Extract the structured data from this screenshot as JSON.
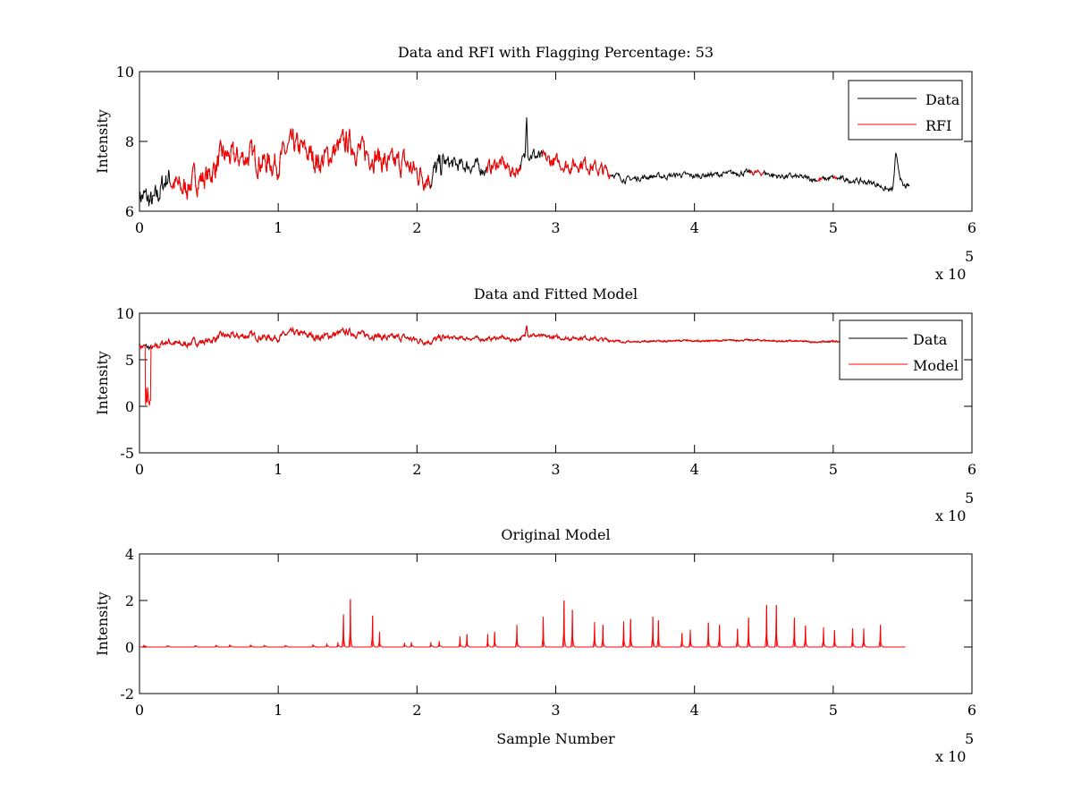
{
  "chart_data": [
    {
      "type": "line",
      "title": "Data and RFI with Flagging Percentage: 53",
      "xlabel": "",
      "ylabel": "Intensity",
      "xlim": [
        0,
        6
      ],
      "ylim": [
        6,
        10
      ],
      "xticks": [
        "0",
        "1",
        "2",
        "3",
        "4",
        "5",
        "6"
      ],
      "yticks": [
        "6",
        "8",
        "10"
      ],
      "yticks_values": [
        6,
        8,
        10
      ],
      "x_multiplier": "x 10",
      "x_multiplier_exp": "5",
      "legend": [
        "Data",
        "RFI"
      ],
      "legend_position": "top-right",
      "series": [
        {
          "name": "Data",
          "color": "#000000",
          "x": [
            0,
            0.1,
            0.2,
            0.3,
            0.4,
            0.5,
            0.6,
            0.7,
            0.8,
            0.9,
            1.0,
            1.1,
            1.2,
            1.3,
            1.4,
            1.5,
            1.6,
            1.7,
            1.8,
            1.9,
            2.0,
            2.1,
            2.2,
            2.3,
            2.4,
            2.5,
            2.6,
            2.7,
            2.78,
            2.79,
            2.8,
            2.9,
            3.0,
            3.1,
            3.2,
            3.3,
            3.4,
            3.5,
            3.6,
            3.7,
            3.8,
            3.9,
            4.0,
            4.1,
            4.2,
            4.3,
            4.4,
            4.5,
            4.6,
            4.7,
            4.8,
            4.9,
            5.0,
            5.1,
            5.2,
            5.3,
            5.4,
            5.43,
            5.45,
            5.5,
            5.55
          ],
          "y": [
            6.5,
            6.2,
            7.0,
            6.6,
            6.9,
            7.0,
            7.6,
            7.5,
            7.6,
            7.4,
            7.4,
            7.9,
            7.7,
            7.4,
            7.7,
            8.0,
            7.7,
            7.6,
            7.3,
            7.4,
            7.1,
            7.0,
            7.4,
            7.3,
            7.3,
            7.2,
            7.4,
            7.1,
            7.5,
            9.0,
            7.7,
            7.5,
            7.4,
            7.3,
            7.4,
            7.2,
            7.1,
            6.9,
            6.95,
            7.0,
            7.0,
            7.05,
            7.0,
            7.05,
            7.05,
            7.1,
            7.1,
            7.1,
            7.0,
            7.0,
            6.95,
            6.9,
            6.95,
            6.9,
            6.85,
            6.8,
            6.6,
            6.6,
            7.6,
            6.7,
            6.7
          ]
        },
        {
          "name": "RFI",
          "color": "#ff0000",
          "ranges": [
            [
              0.22,
              2.1
            ],
            [
              2.5,
              2.75
            ],
            [
              2.9,
              3.4
            ],
            [
              4.4,
              4.5
            ],
            [
              4.88,
              4.92
            ],
            [
              5.0,
              5.03
            ]
          ]
        }
      ]
    },
    {
      "type": "line",
      "title": "Data and Fitted Model",
      "xlabel": "",
      "ylabel": "Intensity",
      "xlim": [
        0,
        6
      ],
      "ylim": [
        -5,
        10
      ],
      "xticks": [
        "0",
        "1",
        "2",
        "3",
        "4",
        "5",
        "6"
      ],
      "yticks": [
        "-5",
        "0",
        "5",
        "10"
      ],
      "yticks_values": [
        -5,
        0,
        5,
        10
      ],
      "x_multiplier": "x 10",
      "x_multiplier_exp": "5",
      "legend": [
        "Data",
        "Model"
      ],
      "legend_position": "top-right",
      "series": [
        {
          "name": "Data",
          "color": "#000000",
          "same_as": "Data"
        },
        {
          "name": "Model",
          "color": "#ff0000",
          "dip": {
            "x": [
              0.04,
              0.08
            ],
            "y": 0
          }
        }
      ]
    },
    {
      "type": "line",
      "title": "Original Model",
      "xlabel": "Sample Number",
      "ylabel": "Intensity",
      "xlim": [
        0,
        6
      ],
      "ylim": [
        -2,
        4
      ],
      "xticks": [
        "0",
        "1",
        "2",
        "3",
        "4",
        "5",
        "6"
      ],
      "yticks": [
        "-2",
        "0",
        "2",
        "4"
      ],
      "yticks_values": [
        -2,
        0,
        2,
        4
      ],
      "x_multiplier": "x 10",
      "x_multiplier_exp": "5",
      "x_end": 5.52,
      "series": [
        {
          "name": "Model",
          "color": "#ff0000",
          "peaks_x": [
            0.03,
            0.2,
            0.4,
            0.55,
            0.65,
            0.8,
            0.9,
            1.05,
            1.25,
            1.35,
            1.43,
            1.47,
            1.52,
            1.68,
            1.73,
            1.91,
            1.96,
            2.1,
            2.16,
            2.31,
            2.36,
            2.51,
            2.56,
            2.72,
            2.91,
            3.06,
            3.12,
            3.28,
            3.34,
            3.49,
            3.54,
            3.7,
            3.74,
            3.91,
            3.97,
            4.1,
            4.18,
            4.31,
            4.39,
            4.52,
            4.59,
            4.72,
            4.8,
            4.93,
            5.01,
            5.14,
            5.22,
            5.34
          ],
          "peaks_y": [
            0.06,
            0.05,
            0.05,
            0.06,
            0.1,
            0.08,
            0.06,
            0.06,
            0.12,
            0.15,
            0.2,
            1.4,
            2.05,
            1.35,
            0.65,
            0.18,
            0.2,
            0.2,
            0.25,
            0.45,
            0.55,
            0.55,
            0.65,
            0.95,
            1.3,
            2.0,
            1.6,
            1.07,
            0.95,
            1.1,
            1.2,
            1.3,
            1.15,
            0.6,
            0.75,
            1.05,
            0.95,
            0.78,
            1.26,
            1.8,
            1.8,
            1.26,
            0.92,
            0.85,
            0.72,
            0.8,
            0.8,
            0.95
          ]
        }
      ]
    }
  ]
}
